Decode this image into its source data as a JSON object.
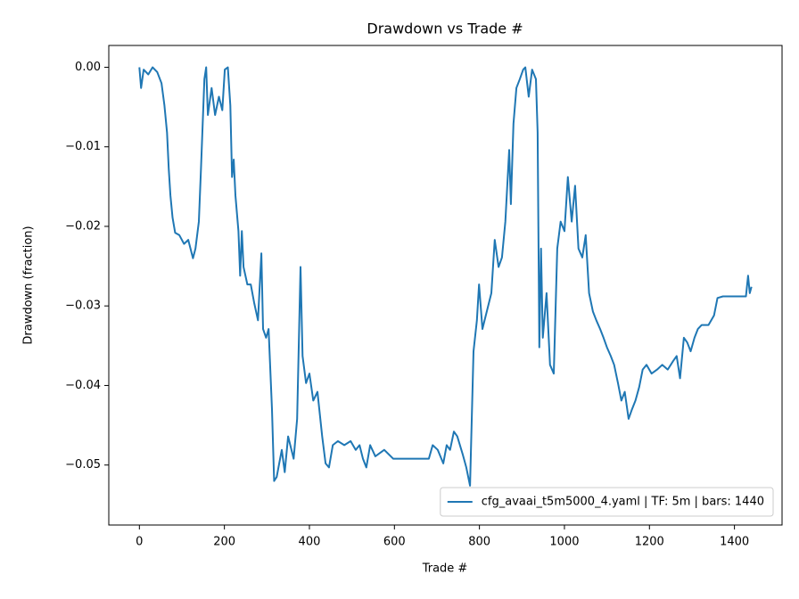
{
  "chart_data": {
    "type": "line",
    "title": "Drawdown vs Trade #",
    "x_label": "Trade #",
    "y_label": "Drawdown (fraction)",
    "x": [
      0,
      4,
      10,
      21,
      31,
      42,
      52,
      59,
      65,
      69,
      73,
      78,
      84,
      94,
      105,
      115,
      126,
      132,
      140,
      145,
      149,
      153,
      157,
      161,
      170,
      178,
      187,
      195,
      201,
      208,
      214,
      218,
      222,
      226,
      233,
      237,
      241,
      245,
      254,
      262,
      270,
      279,
      287,
      291,
      298,
      304,
      312,
      317,
      323,
      329,
      335,
      342,
      350,
      363,
      371,
      379,
      384,
      392,
      400,
      409,
      419,
      430,
      438,
      446,
      455,
      467,
      482,
      497,
      509,
      518,
      526,
      534,
      543,
      555,
      576,
      597,
      618,
      639,
      660,
      681,
      690,
      702,
      715,
      723,
      731,
      740,
      748,
      761,
      769,
      778,
      786,
      794,
      799,
      807,
      820,
      828,
      836,
      845,
      853,
      861,
      870,
      874,
      880,
      887,
      895,
      903,
      908,
      916,
      924,
      933,
      937,
      941,
      945,
      949,
      958,
      966,
      975,
      983,
      991,
      1000,
      1008,
      1017,
      1025,
      1033,
      1042,
      1050,
      1058,
      1067,
      1075,
      1084,
      1092,
      1100,
      1109,
      1117,
      1126,
      1134,
      1142,
      1151,
      1159,
      1167,
      1176,
      1184,
      1193,
      1205,
      1218,
      1230,
      1243,
      1256,
      1264,
      1272,
      1281,
      1289,
      1297,
      1306,
      1314,
      1323,
      1331,
      1339,
      1352,
      1360,
      1373,
      1394,
      1423,
      1427,
      1432,
      1436,
      1440
    ],
    "series": [
      {
        "name": "cfg_avaai_t5m5000_4.yaml | TF: 5m | bars: 1440",
        "color": "#1f77b4",
        "values": [
          0,
          -0.0026,
          -0.0003,
          -0.0009,
          0,
          -0.0006,
          -0.002,
          -0.0048,
          -0.0082,
          -0.0127,
          -0.0161,
          -0.0189,
          -0.0208,
          -0.0211,
          -0.0222,
          -0.0217,
          -0.024,
          -0.0228,
          -0.0194,
          -0.0127,
          -0.0071,
          -0.0015,
          0,
          -0.006,
          -0.0026,
          -0.006,
          -0.0037,
          -0.0054,
          -0.0003,
          0,
          -0.0048,
          -0.0138,
          -0.0116,
          -0.0161,
          -0.0206,
          -0.0262,
          -0.0206,
          -0.0251,
          -0.0273,
          -0.0273,
          -0.0296,
          -0.0318,
          -0.0234,
          -0.0329,
          -0.034,
          -0.0329,
          -0.043,
          -0.052,
          -0.0515,
          -0.0498,
          -0.0481,
          -0.0509,
          -0.0464,
          -0.0492,
          -0.0442,
          -0.0251,
          -0.0363,
          -0.0397,
          -0.0385,
          -0.0419,
          -0.0408,
          -0.0464,
          -0.0498,
          -0.0503,
          -0.0475,
          -0.047,
          -0.0475,
          -0.047,
          -0.0481,
          -0.0475,
          -0.0492,
          -0.0503,
          -0.0475,
          -0.0489,
          -0.0481,
          -0.0492,
          -0.0492,
          -0.0492,
          -0.0492,
          -0.0492,
          -0.0475,
          -0.0481,
          -0.0498,
          -0.0475,
          -0.0481,
          -0.0458,
          -0.0464,
          -0.0487,
          -0.0503,
          -0.0526,
          -0.0357,
          -0.0318,
          -0.0273,
          -0.0329,
          -0.0301,
          -0.0284,
          -0.0217,
          -0.0251,
          -0.0239,
          -0.0194,
          -0.0104,
          -0.0172,
          -0.0071,
          -0.0026,
          -0.0015,
          -0.0003,
          0,
          -0.0037,
          -0.0003,
          -0.0015,
          -0.0082,
          -0.0352,
          -0.0228,
          -0.034,
          -0.0284,
          -0.0374,
          -0.0385,
          -0.0228,
          -0.0194,
          -0.0206,
          -0.0138,
          -0.0194,
          -0.0149,
          -0.0228,
          -0.0239,
          -0.0211,
          -0.0284,
          -0.0307,
          -0.0318,
          -0.0329,
          -0.034,
          -0.0352,
          -0.0363,
          -0.0374,
          -0.0397,
          -0.0419,
          -0.0408,
          -0.0442,
          -0.043,
          -0.0419,
          -0.0402,
          -0.038,
          -0.0374,
          -0.0385,
          -0.038,
          -0.0374,
          -0.038,
          -0.0369,
          -0.0363,
          -0.0391,
          -0.034,
          -0.0346,
          -0.0357,
          -0.034,
          -0.0329,
          -0.0324,
          -0.0324,
          -0.0324,
          -0.0312,
          -0.029,
          -0.0288,
          -0.0288,
          -0.0288,
          -0.0288,
          -0.0262,
          -0.0284,
          -0.0276
        ]
      }
    ],
    "xlim": [
      -72,
      1512
    ],
    "ylim": [
      -0.05754,
      0.00274
    ],
    "xticks": [
      0,
      200,
      400,
      600,
      800,
      1000,
      1200,
      1400
    ],
    "yticks": [
      {
        "value": 0,
        "label": "0.00"
      },
      {
        "value": -0.01,
        "label": "−0.01"
      },
      {
        "value": -0.02,
        "label": "−0.02"
      },
      {
        "value": -0.03,
        "label": "−0.03"
      },
      {
        "value": -0.04,
        "label": "−0.04"
      },
      {
        "value": -0.05,
        "label": "−0.05"
      }
    ],
    "grid": false,
    "legend": "lower right"
  }
}
